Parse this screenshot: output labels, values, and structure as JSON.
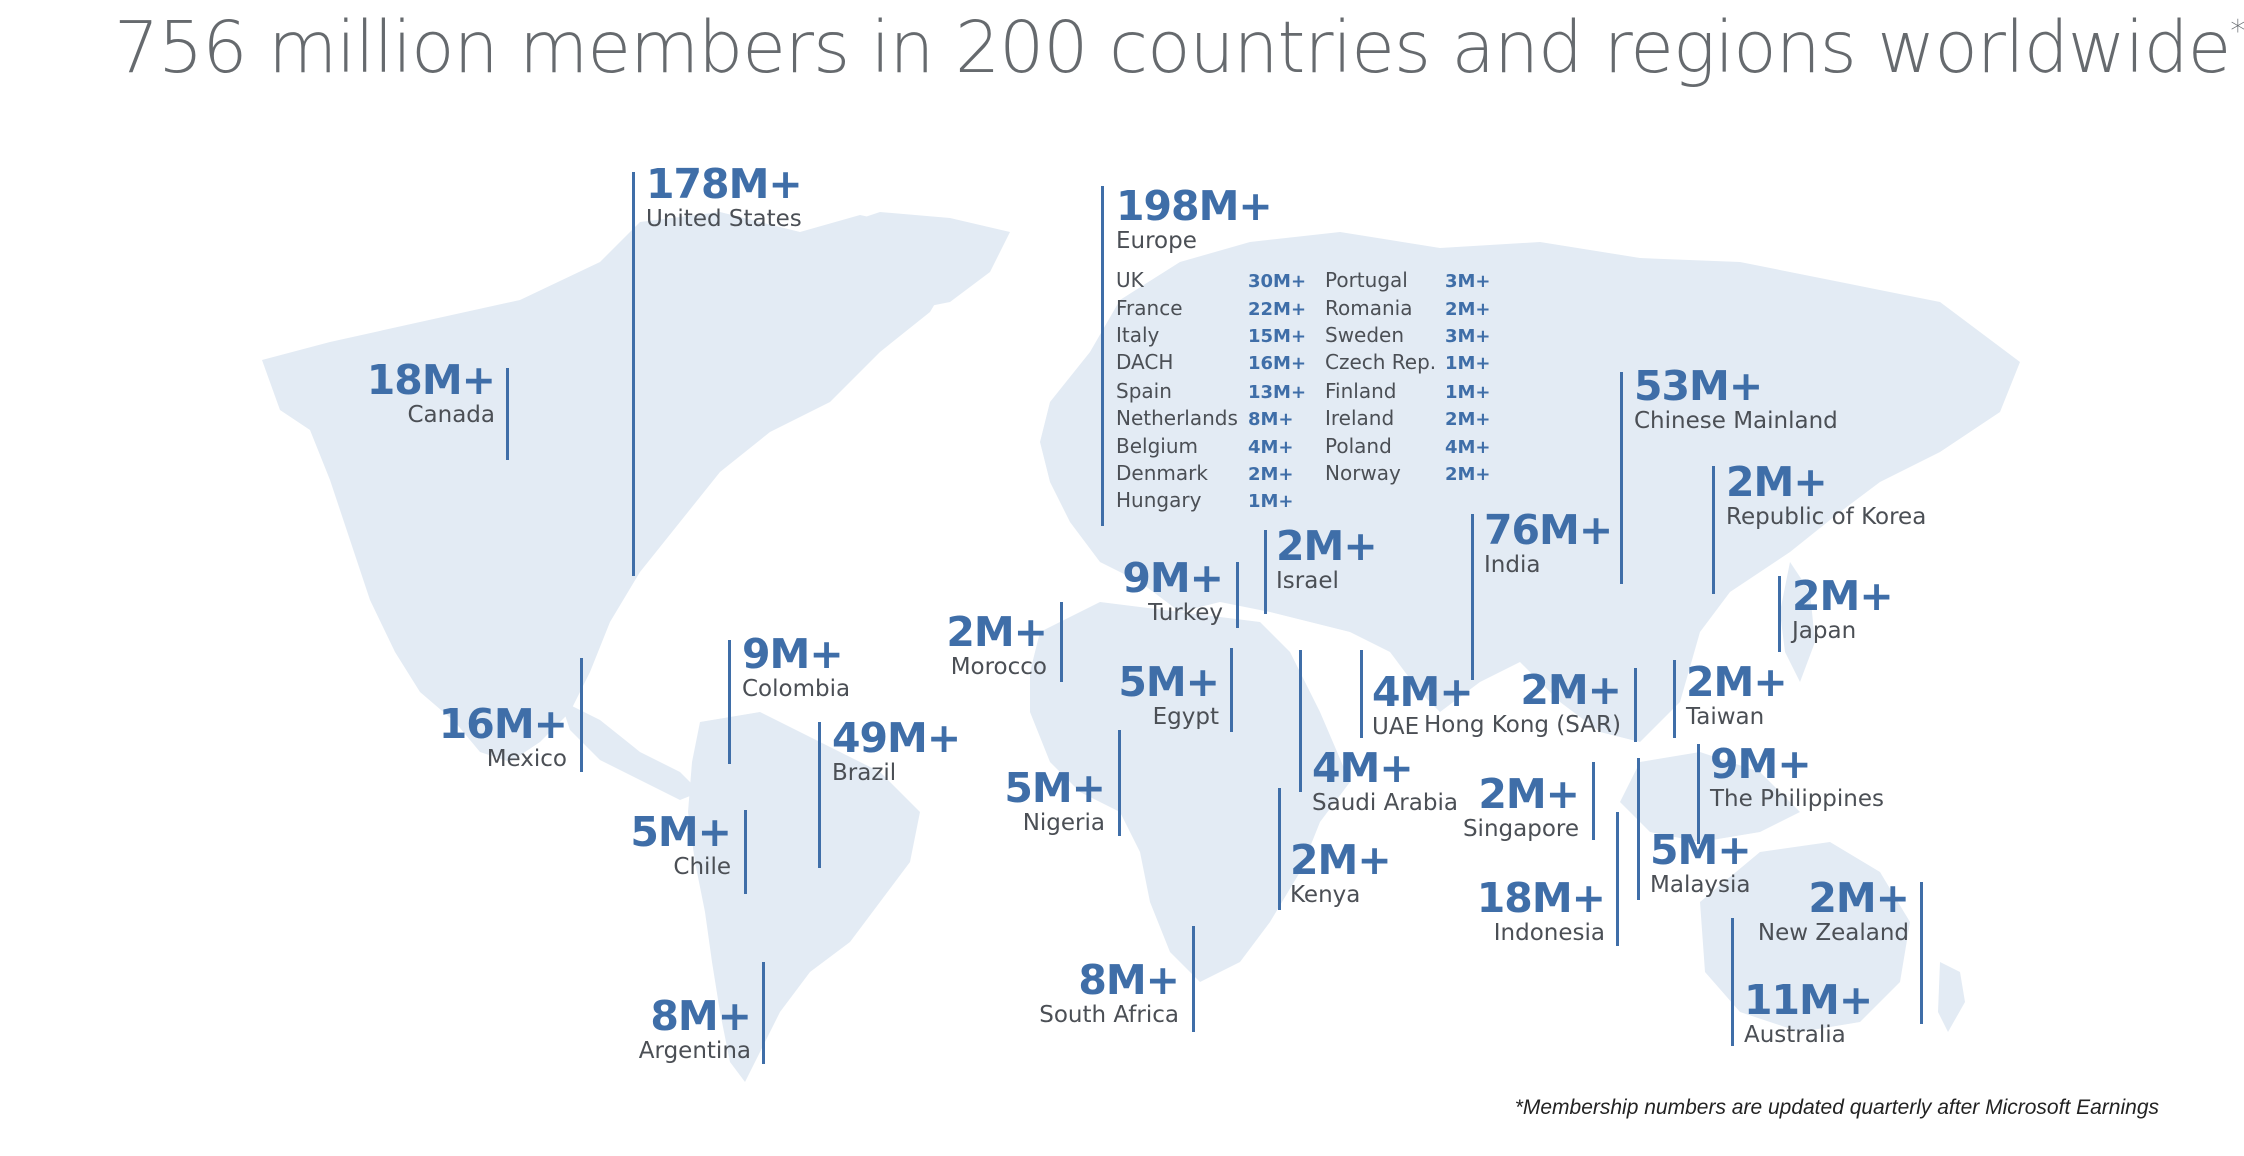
{
  "title": "756 million members in 200 countries and regions worldwide",
  "title_mark": "*",
  "footnote": "*Membership numbers are updated quarterly after Microsoft Earnings",
  "regions": [
    {
      "id": "united-states",
      "value": "178M+",
      "name": "United States"
    },
    {
      "id": "canada",
      "value": "18M+",
      "name": "Canada"
    },
    {
      "id": "mexico",
      "value": "16M+",
      "name": "Mexico"
    },
    {
      "id": "colombia",
      "value": "9M+",
      "name": "Colombia"
    },
    {
      "id": "brazil",
      "value": "49M+",
      "name": "Brazil"
    },
    {
      "id": "chile",
      "value": "5M+",
      "name": "Chile"
    },
    {
      "id": "argentina",
      "value": "8M+",
      "name": "Argentina"
    },
    {
      "id": "europe",
      "value": "198M+",
      "name": "Europe"
    },
    {
      "id": "morocco",
      "value": "2M+",
      "name": "Morocco"
    },
    {
      "id": "turkey",
      "value": "9M+",
      "name": "Turkey"
    },
    {
      "id": "israel",
      "value": "2M+",
      "name": "Israel"
    },
    {
      "id": "egypt",
      "value": "5M+",
      "name": "Egypt"
    },
    {
      "id": "nigeria",
      "value": "5M+",
      "name": "Nigeria"
    },
    {
      "id": "uae",
      "value": "4M+",
      "name": "UAE"
    },
    {
      "id": "saudi-arabia",
      "value": "4M+",
      "name": "Saudi Arabia"
    },
    {
      "id": "kenya",
      "value": "2M+",
      "name": "Kenya"
    },
    {
      "id": "south-africa",
      "value": "8M+",
      "name": "South Africa"
    },
    {
      "id": "india",
      "value": "76M+",
      "name": "India"
    },
    {
      "id": "chinese-mainland",
      "value": "53M+",
      "name": "Chinese Mainland"
    },
    {
      "id": "republic-of-korea",
      "value": "2M+",
      "name": "Republic of Korea"
    },
    {
      "id": "japan",
      "value": "2M+",
      "name": "Japan"
    },
    {
      "id": "hong-kong",
      "value": "2M+",
      "name": "Hong Kong (SAR)"
    },
    {
      "id": "taiwan",
      "value": "2M+",
      "name": "Taiwan"
    },
    {
      "id": "philippines",
      "value": "9M+",
      "name": "The Philippines"
    },
    {
      "id": "singapore",
      "value": "2M+",
      "name": "Singapore"
    },
    {
      "id": "malaysia",
      "value": "5M+",
      "name": "Malaysia"
    },
    {
      "id": "indonesia",
      "value": "18M+",
      "name": "Indonesia"
    },
    {
      "id": "new-zealand",
      "value": "2M+",
      "name": "New Zealand"
    },
    {
      "id": "australia",
      "value": "11M+",
      "name": "Australia"
    }
  ],
  "europe_breakdown": [
    {
      "name": "UK",
      "value": "30M+"
    },
    {
      "name": "France",
      "value": "22M+"
    },
    {
      "name": "Italy",
      "value": "15M+"
    },
    {
      "name": "DACH",
      "value": "16M+"
    },
    {
      "name": "Spain",
      "value": "13M+"
    },
    {
      "name": "Netherlands",
      "value": "8M+"
    },
    {
      "name": "Belgium",
      "value": "4M+"
    },
    {
      "name": "Denmark",
      "value": "2M+"
    },
    {
      "name": "Hungary",
      "value": "1M+"
    },
    {
      "name": "Portugal",
      "value": "3M+"
    },
    {
      "name": "Romania",
      "value": "2M+"
    },
    {
      "name": "Sweden",
      "value": "3M+"
    },
    {
      "name": "Czech Rep.",
      "value": "1M+"
    },
    {
      "name": "Finland",
      "value": "1M+"
    },
    {
      "name": "Ireland",
      "value": "2M+"
    },
    {
      "name": "Poland",
      "value": "4M+"
    },
    {
      "name": "Norway",
      "value": "2M+"
    }
  ],
  "colors": {
    "accent": "#3f6ea8",
    "land": "#e3ebf4",
    "text": "#4b4f55",
    "title": "#666a6e"
  }
}
